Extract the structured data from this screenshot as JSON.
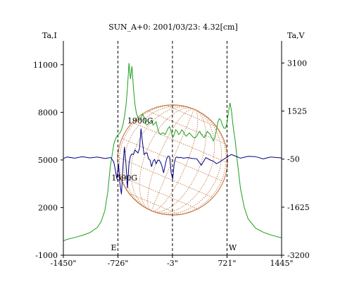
{
  "chart_data": {
    "type": "line",
    "title": "SUN_A+0: 2001/03/23: 4.32[cm]",
    "left_axis_label": "Ta,I",
    "right_axis_label": "Ta,V",
    "x_ticks": [
      {
        "value": -1450,
        "label": "-1450\""
      },
      {
        "value": -726,
        "label": "-726\""
      },
      {
        "value": -3,
        "label": "-3\""
      },
      {
        "value": 721,
        "label": "721\""
      },
      {
        "value": 1445,
        "label": "1445\""
      }
    ],
    "xlim": [
      -1450,
      1445
    ],
    "left_ylim": [
      -1000,
      12500
    ],
    "left_ticks": [
      {
        "value": 11000,
        "label": "11000"
      },
      {
        "value": 8000,
        "label": "8000"
      },
      {
        "value": 5000,
        "label": "5000"
      },
      {
        "value": 2000,
        "label": "2000"
      },
      {
        "value": -1000,
        "label": "-1000"
      }
    ],
    "right_ylim": [
      -3200,
      3825
    ],
    "right_ticks": [
      {
        "value": 3100,
        "label": "3100"
      },
      {
        "value": 1525,
        "label": "1525"
      },
      {
        "value": -50,
        "label": "-50"
      },
      {
        "value": -1625,
        "label": "-1625"
      },
      {
        "value": -3200,
        "label": "-3200"
      }
    ],
    "vertical_markers": [
      {
        "x": -726,
        "label": "E"
      },
      {
        "x": -3,
        "label": ""
      },
      {
        "x": 721,
        "label": "W"
      }
    ],
    "annotations": [
      {
        "text": "1900G",
        "x": -430,
        "y": 7300
      },
      {
        "text": "1590G",
        "x": -640,
        "y": 3700
      }
    ],
    "solar_disk": {
      "center_x": 0,
      "center_y": 5000,
      "radius_arcsec": 730,
      "color": "#c0703a"
    },
    "colors": {
      "intensity": "#1aa01a",
      "polarization": "#000080",
      "grid": "#c0703a",
      "axis": "#000000"
    },
    "series": [
      {
        "name": "Ta,I",
        "axis": "left",
        "x": [
          -1450,
          -1400,
          -1300,
          -1200,
          -1100,
          -1000,
          -950,
          -900,
          -860,
          -830,
          -800,
          -780,
          -760,
          -740,
          -720,
          -700,
          -680,
          -660,
          -640,
          -620,
          -600,
          -580,
          -560,
          -540,
          -520,
          -500,
          -480,
          -460,
          -440,
          -420,
          -400,
          -380,
          -360,
          -340,
          -320,
          -300,
          -280,
          -260,
          -240,
          -220,
          -200,
          -180,
          -160,
          -140,
          -120,
          -100,
          -80,
          -60,
          -40,
          -20,
          0,
          20,
          40,
          60,
          80,
          100,
          120,
          140,
          160,
          180,
          200,
          220,
          240,
          260,
          280,
          300,
          320,
          340,
          360,
          380,
          400,
          420,
          440,
          460,
          480,
          500,
          520,
          540,
          560,
          580,
          600,
          620,
          640,
          660,
          680,
          700,
          720,
          740,
          760,
          780,
          800,
          830,
          860,
          900,
          950,
          1000,
          1100,
          1200,
          1300,
          1400,
          1445
        ],
        "values": [
          -100,
          0,
          120,
          250,
          420,
          750,
          1100,
          1800,
          3000,
          4500,
          5400,
          6000,
          6300,
          6500,
          6600,
          6700,
          6900,
          7200,
          7700,
          8400,
          9500,
          11100,
          10100,
          10900,
          9500,
          8500,
          7900,
          7700,
          7500,
          7600,
          7900,
          7700,
          7300,
          7200,
          7300,
          7400,
          7500,
          7200,
          7300,
          7400,
          7000,
          6700,
          6600,
          6700,
          6700,
          6600,
          6800,
          7000,
          7100,
          6800,
          6400,
          6600,
          6900,
          6800,
          6600,
          6700,
          6900,
          6800,
          6600,
          6500,
          6600,
          6700,
          6600,
          6500,
          6400,
          6400,
          6500,
          6700,
          6800,
          6600,
          6500,
          6400,
          6600,
          6800,
          6700,
          6600,
          6400,
          6200,
          6400,
          6900,
          7400,
          7600,
          7500,
          7200,
          7000,
          7000,
          7300,
          8000,
          8600,
          8100,
          7200,
          6200,
          4800,
          3200,
          2000,
          1300,
          700,
          450,
          280,
          150,
          100
        ]
      },
      {
        "name": "Ta,V",
        "axis": "right",
        "x": [
          -1450,
          -1400,
          -1300,
          -1200,
          -1100,
          -1000,
          -900,
          -820,
          -780,
          -760,
          -740,
          -720,
          -700,
          -680,
          -660,
          -640,
          -620,
          -600,
          -580,
          -560,
          -540,
          -520,
          -500,
          -480,
          -460,
          -440,
          -420,
          -400,
          -380,
          -360,
          -340,
          -320,
          -300,
          -280,
          -260,
          -240,
          -220,
          -200,
          -180,
          -160,
          -140,
          -120,
          -100,
          -80,
          -60,
          -40,
          -20,
          0,
          20,
          40,
          60,
          80,
          100,
          140,
          200,
          260,
          320,
          380,
          440,
          500,
          540,
          580,
          620,
          660,
          700,
          740,
          780,
          820,
          900,
          1000,
          1100,
          1200,
          1300,
          1445
        ],
        "values": [
          -30,
          20,
          -20,
          30,
          -10,
          20,
          -30,
          0,
          -150,
          -420,
          -700,
          -200,
          -850,
          -1200,
          -300,
          350,
          -200,
          -1000,
          -200,
          50,
          120,
          100,
          250,
          200,
          150,
          300,
          950,
          500,
          100,
          150,
          150,
          -40,
          -80,
          -300,
          -120,
          -60,
          -200,
          -100,
          -80,
          -160,
          -300,
          -500,
          -250,
          -40,
          50,
          30,
          -500,
          -700,
          -200,
          0,
          20,
          -10,
          10,
          -20,
          0,
          -30,
          -40,
          -250,
          0,
          -80,
          -120,
          -200,
          -150,
          -80,
          -20,
          50,
          100,
          60,
          -20,
          40,
          30,
          -40,
          20,
          -10
        ]
      }
    ]
  }
}
